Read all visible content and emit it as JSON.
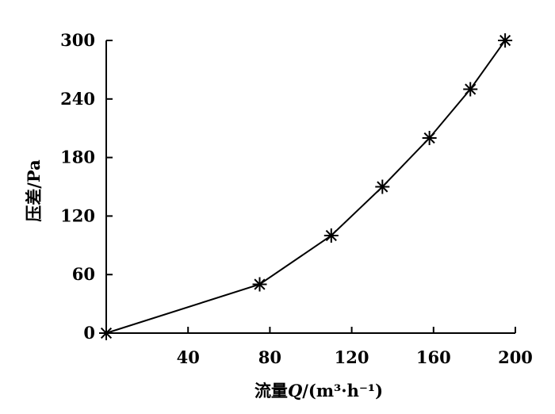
{
  "chart_data": {
    "type": "line",
    "xlabel": "流量Q/(m³·h⁻¹)",
    "xlabel_parts": {
      "prefix": "流量",
      "italic": "Q",
      "suffix": "/(m³·h⁻¹)"
    },
    "ylabel": "压差/Pa",
    "xlim": [
      0,
      200
    ],
    "ylim": [
      0,
      300
    ],
    "x_ticks": [
      40,
      80,
      120,
      160,
      200
    ],
    "y_ticks": [
      0,
      60,
      120,
      180,
      240,
      300
    ],
    "grid": false,
    "marker": "asterisk",
    "series": [
      {
        "x": [
          0,
          75,
          110,
          135,
          158,
          178,
          195
        ],
        "y": [
          0,
          50,
          100,
          150,
          200,
          250,
          300
        ]
      }
    ]
  }
}
